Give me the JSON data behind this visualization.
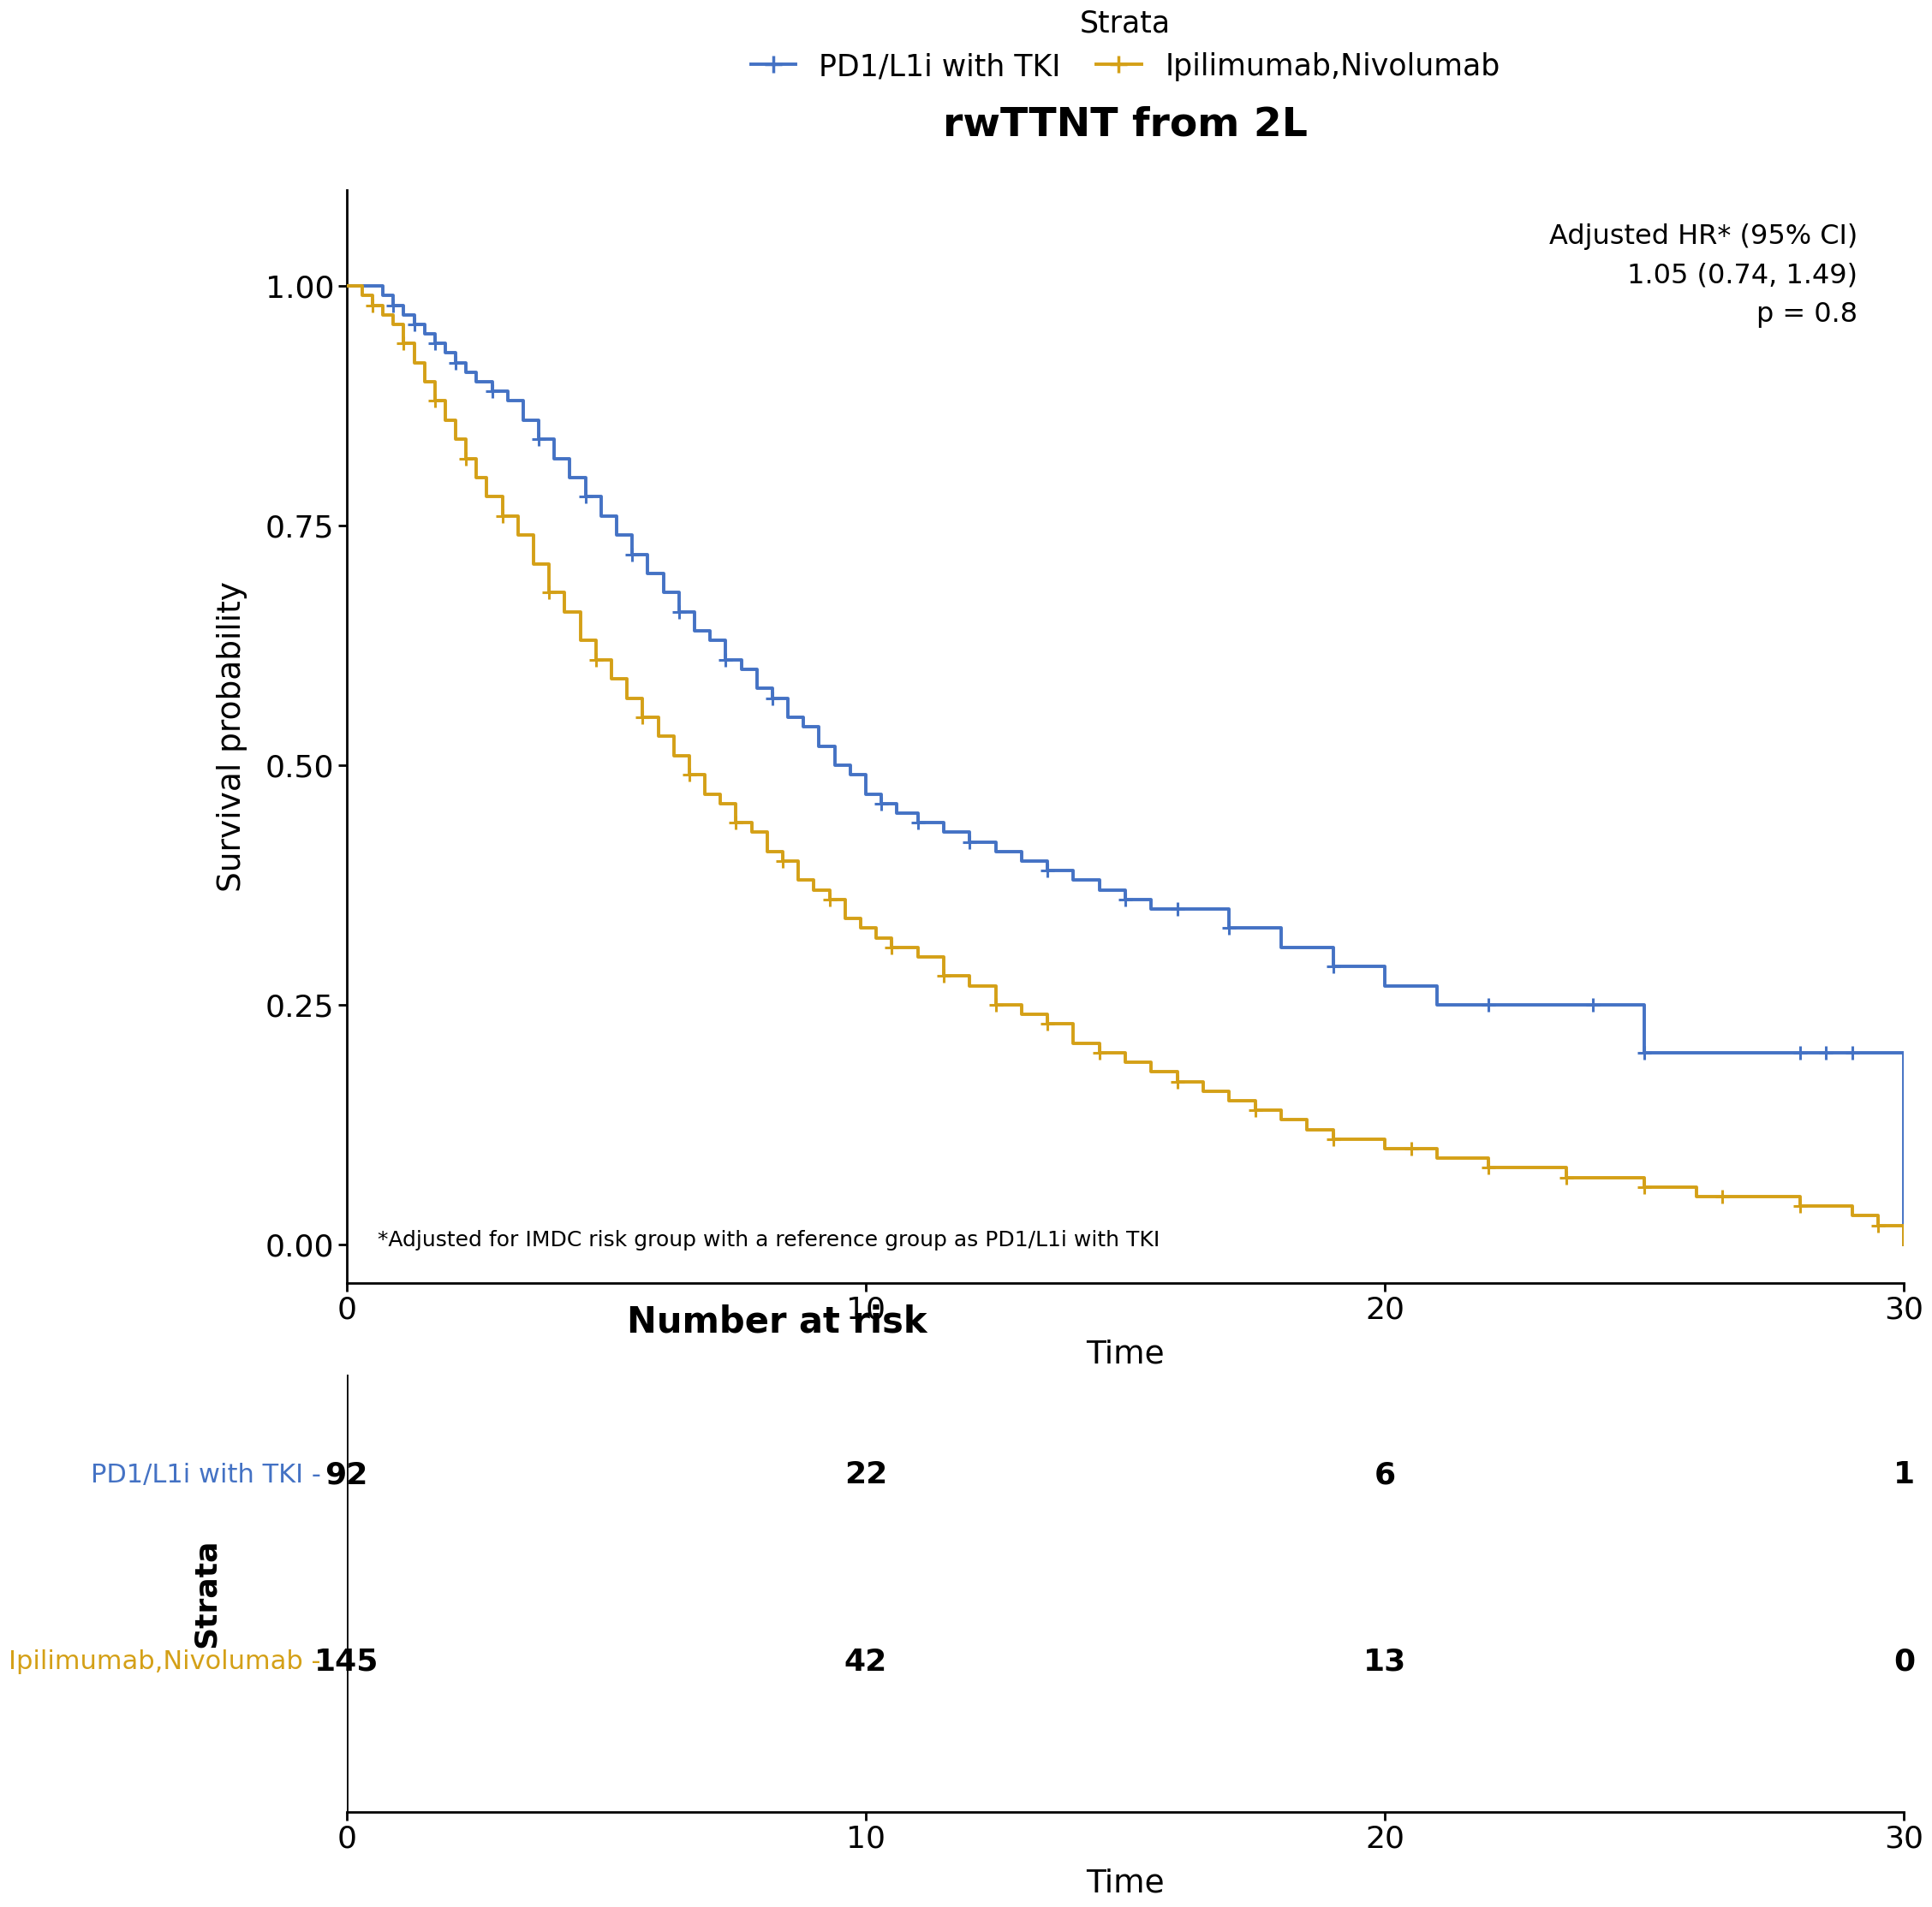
{
  "title": "rwTTNT from 2L",
  "ylabel": "Survival probability",
  "xlabel": "Time",
  "xlim": [
    0,
    30
  ],
  "xticks": [
    0,
    10,
    20,
    30
  ],
  "yticks": [
    0.0,
    0.25,
    0.5,
    0.75,
    1.0
  ],
  "color_blue": "#4472C4",
  "color_gold": "#D4A017",
  "legend_label_blue": "PD1/L1i with TKI",
  "legend_label_gold": "Ipilimumab,Nivolumab",
  "strata_label": "Strata",
  "annotation_text": "Adjusted HR* (95% CI)\n1.05 (0.74, 1.49)\np = 0.8",
  "footnote_text": "*Adjusted for IMDC risk group with a reference group as PD1/L1i with TKI",
  "risk_title": "Number at risk",
  "risk_times": [
    0,
    10,
    20,
    30
  ],
  "risk_blue": [
    92,
    22,
    6,
    1
  ],
  "risk_gold": [
    145,
    42,
    13,
    0
  ],
  "blue_times": [
    0.0,
    0.5,
    0.7,
    0.9,
    1.1,
    1.3,
    1.5,
    1.7,
    1.9,
    2.1,
    2.3,
    2.5,
    2.8,
    3.1,
    3.4,
    3.7,
    4.0,
    4.3,
    4.6,
    4.9,
    5.2,
    5.5,
    5.8,
    6.1,
    6.4,
    6.7,
    7.0,
    7.3,
    7.6,
    7.9,
    8.2,
    8.5,
    8.8,
    9.1,
    9.4,
    9.7,
    10.0,
    10.3,
    10.6,
    11.0,
    11.5,
    12.0,
    12.5,
    13.0,
    13.5,
    14.0,
    14.5,
    15.0,
    15.5,
    16.0,
    17.0,
    18.0,
    19.0,
    20.0,
    21.0,
    22.0,
    23.0,
    24.0,
    25.0,
    26.0,
    27.0,
    27.5,
    28.0,
    28.5,
    29.0,
    30.0
  ],
  "blue_surv": [
    1.0,
    1.0,
    0.99,
    0.98,
    0.97,
    0.96,
    0.95,
    0.94,
    0.93,
    0.92,
    0.91,
    0.9,
    0.89,
    0.88,
    0.86,
    0.84,
    0.82,
    0.8,
    0.78,
    0.76,
    0.74,
    0.72,
    0.7,
    0.68,
    0.66,
    0.64,
    0.63,
    0.61,
    0.6,
    0.58,
    0.57,
    0.55,
    0.54,
    0.52,
    0.5,
    0.49,
    0.47,
    0.46,
    0.45,
    0.44,
    0.43,
    0.42,
    0.41,
    0.4,
    0.39,
    0.38,
    0.37,
    0.36,
    0.35,
    0.35,
    0.33,
    0.31,
    0.29,
    0.27,
    0.25,
    0.25,
    0.25,
    0.25,
    0.2,
    0.2,
    0.2,
    0.2,
    0.2,
    0.2,
    0.2,
    0.0
  ],
  "blue_censor_times": [
    0.9,
    1.3,
    1.7,
    2.1,
    2.8,
    3.7,
    4.6,
    5.5,
    6.4,
    7.3,
    8.2,
    10.3,
    11.0,
    12.0,
    13.5,
    15.0,
    16.0,
    17.0,
    19.0,
    22.0,
    24.0,
    25.0,
    28.0,
    28.5,
    29.0
  ],
  "blue_censor_surv": [
    0.98,
    0.96,
    0.94,
    0.92,
    0.89,
    0.84,
    0.78,
    0.72,
    0.66,
    0.61,
    0.57,
    0.46,
    0.44,
    0.42,
    0.39,
    0.36,
    0.35,
    0.33,
    0.29,
    0.25,
    0.25,
    0.2,
    0.2,
    0.2,
    0.2
  ],
  "gold_times": [
    0.0,
    0.3,
    0.5,
    0.7,
    0.9,
    1.1,
    1.3,
    1.5,
    1.7,
    1.9,
    2.1,
    2.3,
    2.5,
    2.7,
    3.0,
    3.3,
    3.6,
    3.9,
    4.2,
    4.5,
    4.8,
    5.1,
    5.4,
    5.7,
    6.0,
    6.3,
    6.6,
    6.9,
    7.2,
    7.5,
    7.8,
    8.1,
    8.4,
    8.7,
    9.0,
    9.3,
    9.6,
    9.9,
    10.2,
    10.5,
    11.0,
    11.5,
    12.0,
    12.5,
    13.0,
    13.5,
    14.0,
    14.5,
    15.0,
    15.5,
    16.0,
    16.5,
    17.0,
    17.5,
    18.0,
    18.5,
    19.0,
    19.5,
    20.0,
    20.5,
    21.0,
    21.5,
    22.0,
    22.5,
    23.0,
    23.5,
    24.0,
    24.5,
    25.0,
    25.5,
    26.0,
    26.5,
    27.0,
    27.5,
    28.0,
    28.5,
    29.0,
    29.5,
    30.0
  ],
  "gold_surv": [
    1.0,
    0.99,
    0.98,
    0.97,
    0.96,
    0.94,
    0.92,
    0.9,
    0.88,
    0.86,
    0.84,
    0.82,
    0.8,
    0.78,
    0.76,
    0.74,
    0.71,
    0.68,
    0.66,
    0.63,
    0.61,
    0.59,
    0.57,
    0.55,
    0.53,
    0.51,
    0.49,
    0.47,
    0.46,
    0.44,
    0.43,
    0.41,
    0.4,
    0.38,
    0.37,
    0.36,
    0.34,
    0.33,
    0.32,
    0.31,
    0.3,
    0.28,
    0.27,
    0.25,
    0.24,
    0.23,
    0.21,
    0.2,
    0.19,
    0.18,
    0.17,
    0.16,
    0.15,
    0.14,
    0.13,
    0.12,
    0.11,
    0.11,
    0.1,
    0.1,
    0.09,
    0.09,
    0.08,
    0.08,
    0.08,
    0.07,
    0.07,
    0.07,
    0.06,
    0.06,
    0.05,
    0.05,
    0.05,
    0.05,
    0.04,
    0.04,
    0.03,
    0.02,
    0.0
  ],
  "gold_censor_times": [
    0.5,
    1.1,
    1.7,
    2.3,
    3.0,
    3.9,
    4.8,
    5.7,
    6.6,
    7.5,
    8.4,
    9.3,
    10.5,
    11.5,
    12.5,
    13.5,
    14.5,
    16.0,
    17.5,
    19.0,
    20.5,
    22.0,
    23.5,
    25.0,
    26.5,
    28.0,
    29.5
  ],
  "gold_censor_surv": [
    0.98,
    0.94,
    0.88,
    0.82,
    0.76,
    0.68,
    0.61,
    0.55,
    0.49,
    0.44,
    0.4,
    0.36,
    0.31,
    0.28,
    0.25,
    0.23,
    0.2,
    0.17,
    0.14,
    0.11,
    0.1,
    0.08,
    0.07,
    0.06,
    0.05,
    0.04,
    0.02
  ]
}
